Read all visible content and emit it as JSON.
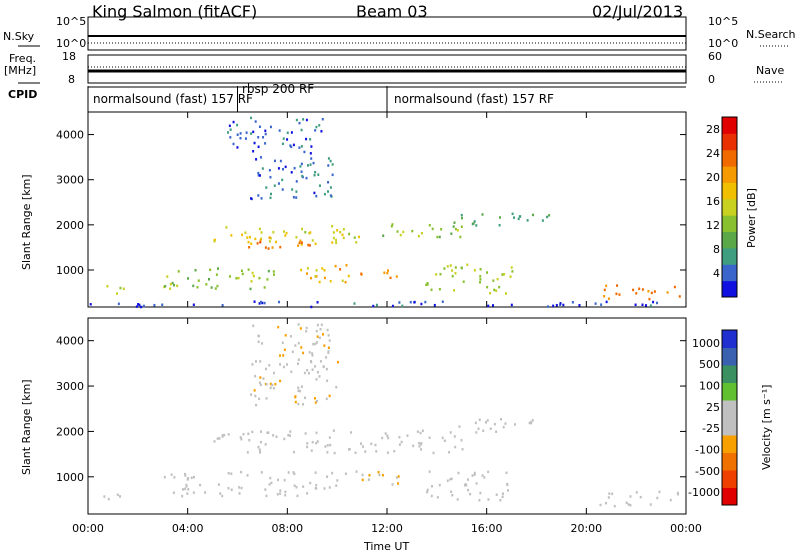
{
  "header": {
    "site": "King Salmon (fitACF)",
    "beam": "Beam 03",
    "date": "02/Jul/2013"
  },
  "aux_panels": {
    "nsky_label": "N.Sky",
    "nsky_ticks": [
      "10^5",
      "10^0"
    ],
    "nsearch_label": "N.Search",
    "nsearch_ticks": [
      "10^5",
      "10^0"
    ],
    "freq_label": "Freq.",
    "freq_unit": "[MHz]",
    "freq_ticks": [
      "18",
      "8"
    ],
    "nave_label": "Nave",
    "nave_ticks": [
      "60",
      "0"
    ],
    "cpid_label": "CPID",
    "cpid_segments": [
      {
        "label": "normalsound (fast) 157 RF",
        "start_h": 0,
        "end_h": 6
      },
      {
        "label": "rbsp 200 RF",
        "start_h": 6,
        "end_h": 12
      },
      {
        "label": "normalsound (fast) 157 RF",
        "start_h": 12,
        "end_h": 24
      }
    ]
  },
  "chart_data": [
    {
      "type": "heatmap",
      "title": "",
      "xlabel": "",
      "ylabel": "Slant Range [km]",
      "xlim": [
        0,
        24
      ],
      "ylim": [
        180,
        4500
      ],
      "x_ticks": [
        "00:00",
        "04:00",
        "08:00",
        "12:00",
        "16:00",
        "20:00",
        "00:00"
      ],
      "y_ticks": [
        1000,
        2000,
        3000,
        4000
      ],
      "colorbar": {
        "label": "Power [dB]",
        "ticks": [
          "4",
          "8",
          "12",
          "16",
          "20",
          "24",
          "28"
        ],
        "range": [
          0,
          30
        ],
        "colors": [
          "#1010e0",
          "#3a66cc",
          "#3f9e80",
          "#5aa848",
          "#88c030",
          "#c8d020",
          "#f0c000",
          "#f59a00",
          "#f06a00",
          "#e83000",
          "#e00000"
        ]
      },
      "echo_regions": [
        {
          "t0": 0.6,
          "t1": 1.4,
          "r0": 420,
          "r1": 700,
          "value": 14
        },
        {
          "t0": 5.0,
          "t1": 11.0,
          "r0": 1550,
          "r1": 2000,
          "value": 16
        },
        {
          "t0": 6.0,
          "t1": 9.5,
          "r0": 1500,
          "r1": 1750,
          "value": 22
        },
        {
          "t0": 11.0,
          "t1": 15.0,
          "r0": 1750,
          "r1": 2050,
          "value": 12
        },
        {
          "t0": 14.5,
          "t1": 18.5,
          "r0": 2000,
          "r1": 2300,
          "value": 8
        },
        {
          "t0": 3.0,
          "t1": 7.5,
          "r0": 600,
          "r1": 1100,
          "value": 12
        },
        {
          "t0": 8.5,
          "t1": 10.5,
          "r0": 650,
          "r1": 1150,
          "value": 18
        },
        {
          "t0": 10.0,
          "t1": 12.5,
          "r0": 850,
          "r1": 1050,
          "value": 22
        },
        {
          "t0": 13.5,
          "t1": 17.0,
          "r0": 500,
          "r1": 1150,
          "value": 13
        },
        {
          "t0": 6.5,
          "t1": 10.0,
          "r0": 2600,
          "r1": 3600,
          "value": 5
        },
        {
          "t0": 5.5,
          "t1": 9.5,
          "r0": 3600,
          "r1": 4400,
          "value": 4
        },
        {
          "t0": 20.5,
          "t1": 23.8,
          "r0": 380,
          "r1": 700,
          "value": 22
        },
        {
          "t0": 0.0,
          "t1": 24.0,
          "r0": 200,
          "r1": 330,
          "value": 3
        }
      ]
    },
    {
      "type": "heatmap",
      "title": "",
      "xlabel": "Time UT",
      "ylabel": "Slant Range [km]",
      "xlim": [
        0,
        24
      ],
      "ylim": [
        180,
        4500
      ],
      "x_ticks": [
        "00:00",
        "04:00",
        "08:00",
        "12:00",
        "16:00",
        "20:00",
        "00:00"
      ],
      "y_ticks": [
        1000,
        2000,
        3000,
        4000
      ],
      "colorbar": {
        "label": "Velocity [m s⁻¹]",
        "ticks": [
          "1000",
          "500",
          "100",
          "25",
          "-25",
          "-100",
          "-500",
          "-1000"
        ],
        "range": [
          -1200,
          1200
        ],
        "colors": [
          "#e00000",
          "#f04000",
          "#f07000",
          "#f8a000",
          "#c0c0c0",
          "#c0c0c0",
          "#60c030",
          "#3a9060",
          "#3a60b0",
          "#2030d0"
        ]
      },
      "echo_regions": [
        {
          "t0": 0.6,
          "t1": 1.4,
          "r0": 420,
          "r1": 700,
          "value": 0
        },
        {
          "t0": 5.0,
          "t1": 15.0,
          "r0": 1550,
          "r1": 2050,
          "value": 0
        },
        {
          "t0": 14.5,
          "t1": 18.5,
          "r0": 2000,
          "r1": 2300,
          "value": 0
        },
        {
          "t0": 3.0,
          "t1": 10.0,
          "r0": 600,
          "r1": 1150,
          "value": 0
        },
        {
          "t0": 10.0,
          "t1": 12.5,
          "r0": 850,
          "r1": 1150,
          "value": -150
        },
        {
          "t0": 13.5,
          "t1": 17.0,
          "r0": 500,
          "r1": 1150,
          "value": 0
        },
        {
          "t0": 6.5,
          "t1": 10.0,
          "r0": 2600,
          "r1": 4400,
          "value": -120
        },
        {
          "t0": 20.5,
          "t1": 23.8,
          "r0": 380,
          "r1": 700,
          "value": 0
        }
      ]
    }
  ]
}
